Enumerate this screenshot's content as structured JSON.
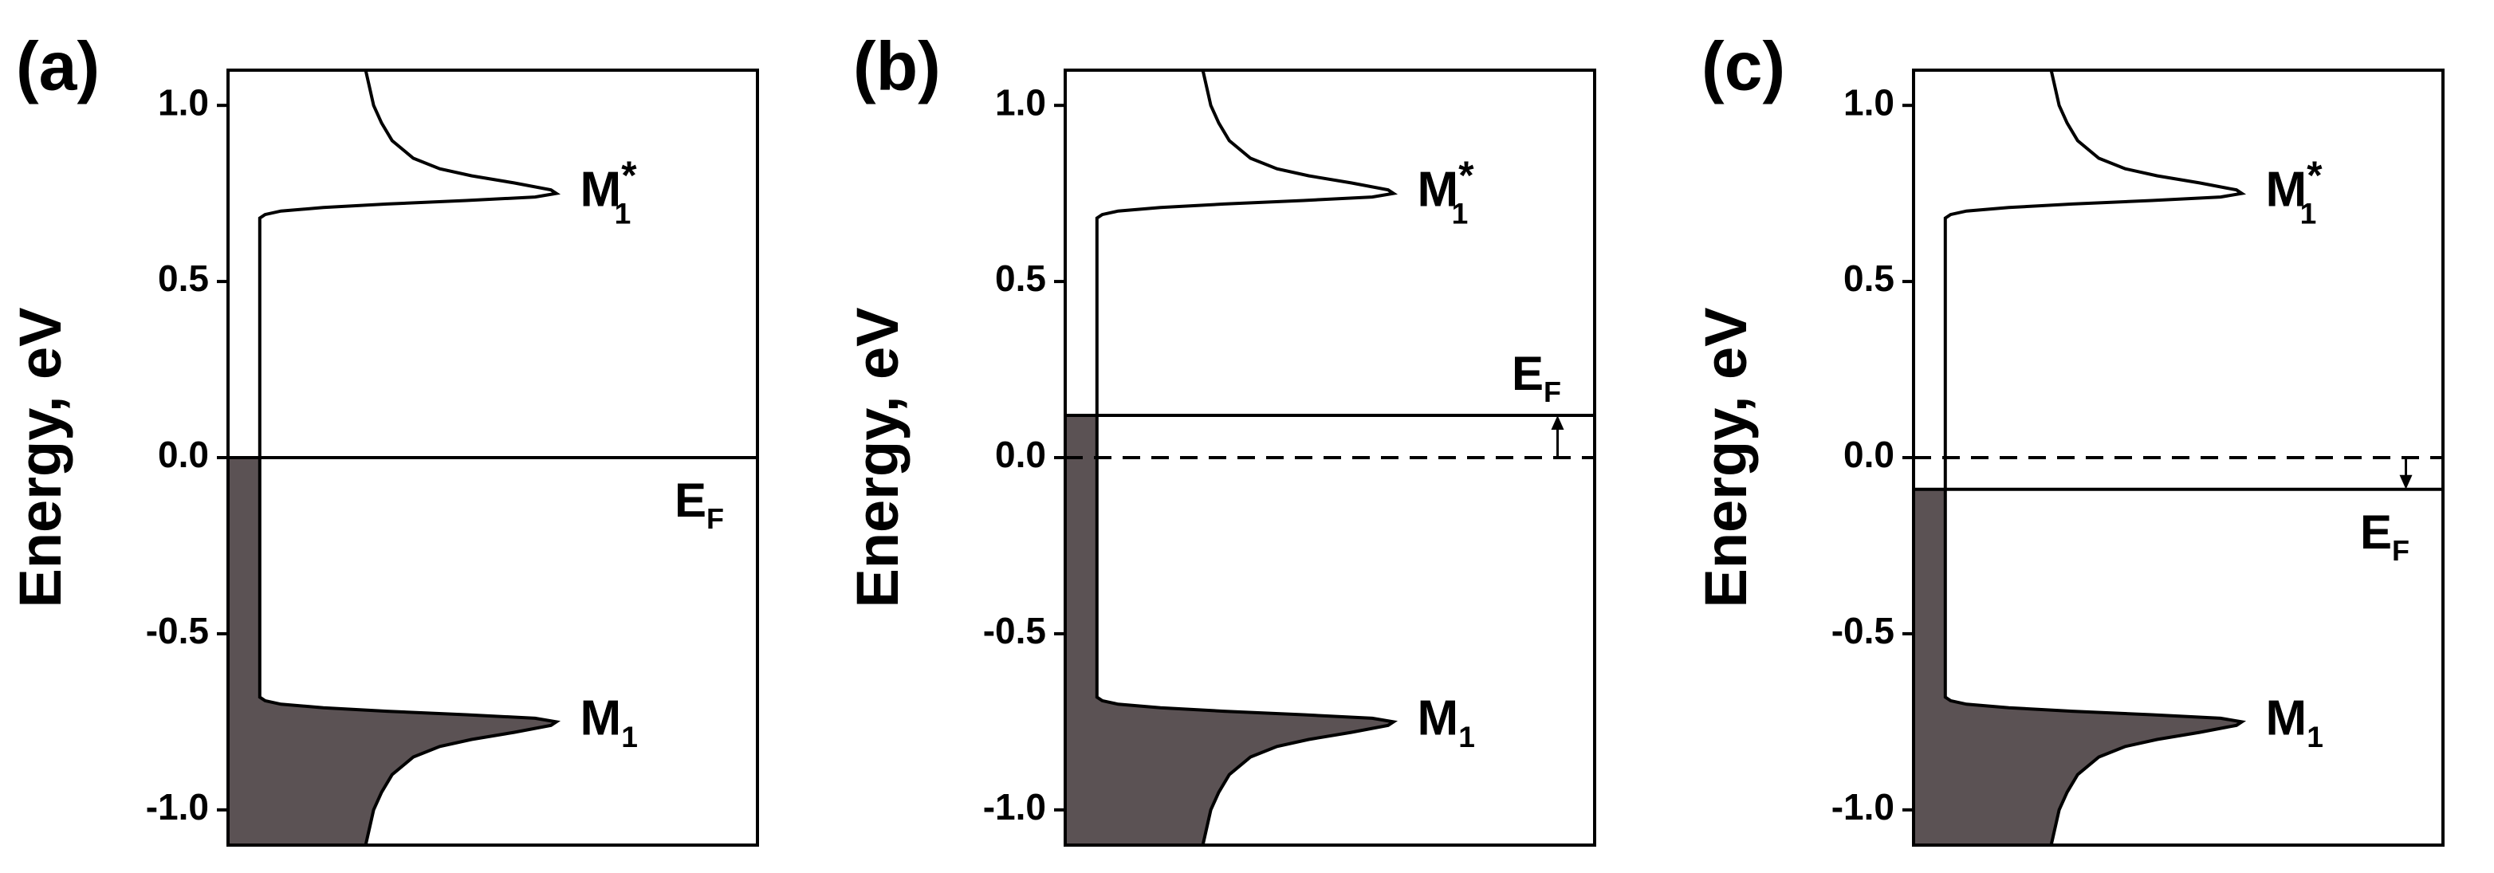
{
  "chart_data": [
    {
      "type": "line",
      "panel_label": "(a)",
      "ylabel": "Energy, eV",
      "ylim": [
        -1.1,
        1.1
      ],
      "xlim": [
        0,
        1
      ],
      "yticks": [
        {
          "value": 1,
          "label": "1.0"
        },
        0.5,
        {
          "value": 0,
          "label": "0.0"
        },
        -0.5,
        {
          "value": -1,
          "label": "-1.0"
        }
      ],
      "x": [
        0.26,
        0.275,
        0.29,
        0.31,
        0.35,
        0.4,
        0.46,
        0.54,
        0.61,
        0.62,
        0.58,
        0.45,
        0.3,
        0.18,
        0.1,
        0.07,
        0.06,
        0.06,
        0.07,
        0.1,
        0.18,
        0.3,
        0.45,
        0.58,
        0.62,
        0.61,
        0.54,
        0.46,
        0.4,
        0.35,
        0.31,
        0.29,
        0.275,
        0.26
      ],
      "values": [
        -1.1,
        -1.0,
        -0.95,
        -0.9,
        -0.85,
        -0.82,
        -0.8,
        -0.78,
        -0.76,
        -0.75,
        -0.74,
        -0.73,
        -0.72,
        -0.71,
        -0.7,
        -0.69,
        -0.68,
        0.68,
        0.69,
        0.7,
        0.71,
        0.72,
        0.73,
        0.74,
        0.75,
        0.76,
        0.78,
        0.8,
        0.82,
        0.85,
        0.9,
        0.95,
        1.0,
        1.1
      ],
      "color": "#000000",
      "fill_color": "#5b5254",
      "annotations": [
        {
          "main": "M",
          "sub": "1",
          "sup": "*",
          "value": 0.75
        },
        {
          "main": "M",
          "sub": "1",
          "value": -0.75
        }
      ],
      "fermi_level": {
        "value": 0,
        "main": "E",
        "sub": "F",
        "side": "below"
      }
    },
    {
      "type": "line",
      "panel_label": "(b)",
      "ylabel": "Energy, eV",
      "ylim": [
        -1.1,
        1.1
      ],
      "xlim": [
        0,
        1
      ],
      "yticks": [
        {
          "value": 1,
          "label": "1.0"
        },
        0.5,
        {
          "value": 0,
          "label": "0.0"
        },
        -0.5,
        {
          "value": -1,
          "label": "-1.0"
        }
      ],
      "x": [
        0.26,
        0.275,
        0.29,
        0.31,
        0.35,
        0.4,
        0.46,
        0.54,
        0.61,
        0.62,
        0.58,
        0.45,
        0.3,
        0.18,
        0.1,
        0.07,
        0.06,
        0.06,
        0.07,
        0.1,
        0.18,
        0.3,
        0.45,
        0.58,
        0.62,
        0.61,
        0.54,
        0.46,
        0.4,
        0.35,
        0.31,
        0.29,
        0.275,
        0.26
      ],
      "values": [
        -1.1,
        -1.0,
        -0.95,
        -0.9,
        -0.85,
        -0.82,
        -0.8,
        -0.78,
        -0.76,
        -0.75,
        -0.74,
        -0.73,
        -0.72,
        -0.71,
        -0.7,
        -0.69,
        -0.68,
        0.68,
        0.69,
        0.7,
        0.71,
        0.72,
        0.73,
        0.74,
        0.75,
        0.76,
        0.78,
        0.8,
        0.82,
        0.85,
        0.9,
        0.95,
        1.0,
        1.1
      ],
      "color": "#000000",
      "fill_color": "#5b5254",
      "annotations": [
        {
          "main": "M",
          "sub": "1",
          "sup": "*",
          "value": 0.75
        },
        {
          "main": "M",
          "sub": "1",
          "value": -0.75
        }
      ],
      "reference_level": 0,
      "fermi_level": {
        "value": 0.12,
        "main": "E",
        "sub": "F",
        "side": "above"
      }
    },
    {
      "type": "line",
      "panel_label": "(c)",
      "ylabel": "Energy, eV",
      "ylim": [
        -1.1,
        1.1
      ],
      "xlim": [
        0,
        1
      ],
      "yticks": [
        {
          "value": 1,
          "label": "1.0"
        },
        0.5,
        {
          "value": 0,
          "label": "0.0"
        },
        -0.5,
        {
          "value": -1,
          "label": "-1.0"
        }
      ],
      "x": [
        0.26,
        0.275,
        0.29,
        0.31,
        0.35,
        0.4,
        0.46,
        0.54,
        0.61,
        0.62,
        0.58,
        0.45,
        0.3,
        0.18,
        0.1,
        0.07,
        0.06,
        0.06,
        0.07,
        0.1,
        0.18,
        0.3,
        0.45,
        0.58,
        0.62,
        0.61,
        0.54,
        0.46,
        0.4,
        0.35,
        0.31,
        0.29,
        0.275,
        0.26
      ],
      "values": [
        -1.1,
        -1.0,
        -0.95,
        -0.9,
        -0.85,
        -0.82,
        -0.8,
        -0.78,
        -0.76,
        -0.75,
        -0.74,
        -0.73,
        -0.72,
        -0.71,
        -0.7,
        -0.69,
        -0.68,
        0.68,
        0.69,
        0.7,
        0.71,
        0.72,
        0.73,
        0.74,
        0.75,
        0.76,
        0.78,
        0.8,
        0.82,
        0.85,
        0.9,
        0.95,
        1.0,
        1.1
      ],
      "color": "#000000",
      "fill_color": "#5b5254",
      "annotations": [
        {
          "main": "M",
          "sub": "1",
          "sup": "*",
          "value": 0.75
        },
        {
          "main": "M",
          "sub": "1",
          "value": -0.75
        }
      ],
      "reference_level": 0,
      "fermi_level": {
        "value": -0.09,
        "main": "E",
        "sub": "F",
        "side": "below"
      }
    }
  ]
}
